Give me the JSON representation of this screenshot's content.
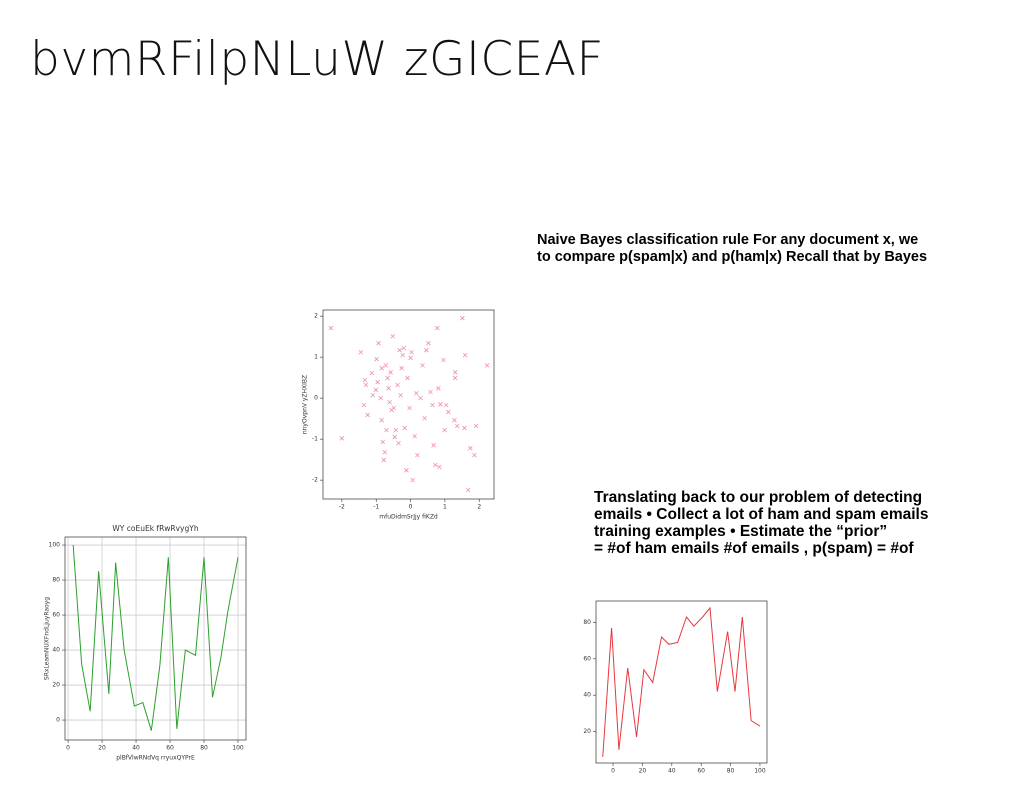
{
  "title": "bvmRFilpNLuW zGICEAF",
  "text_blocks": [
    {
      "lines": [
        "Naive Bayes classification rule For any document x, we",
        "to compare p(spam|x) and p(ham|x) Recall that by Bayes"
      ]
    },
    {
      "lines": [
        "Translating back to our problem of detecting",
        "emails • Collect a lot of ham and spam emails",
        "training examples • Estimate the “prior”",
        "= #of ham emails #of emails , p(spam) = #of"
      ]
    }
  ],
  "chart_data": [
    {
      "type": "scatter",
      "x_label": "mfuDidmSrJjy fiKZd",
      "y_label": "nnyOvpnV yZHXIBZ",
      "color": "#f08cb4",
      "marker": "x",
      "x": [
        -2.32,
        -2.0,
        -1.45,
        -1.33,
        -1.3,
        -1.36,
        -1.25,
        -1.13,
        -1.1,
        -1.01,
        -0.99,
        -0.93,
        -0.96,
        -0.87,
        -0.84,
        -0.84,
        -0.81,
        -0.78,
        -0.75,
        -0.72,
        -0.7,
        -0.67,
        -0.64,
        -0.61,
        -0.58,
        -0.55,
        -0.52,
        -0.49,
        -0.46,
        -0.43,
        -0.38,
        -0.35,
        -0.32,
        -0.29,
        -0.26,
        -0.23,
        -0.2,
        -0.17,
        -0.12,
        -0.09,
        -0.03,
        0,
        0.03,
        0.06,
        0.12,
        0.17,
        0.2,
        0.29,
        0.35,
        0.41,
        0.46,
        0.52,
        0.58,
        0.64,
        0.67,
        0.72,
        0.78,
        0.81,
        0.84,
        0.87,
        0.96,
        0.99,
        1.04,
        1.1,
        1.28,
        1.3,
        1.36,
        1.51,
        1.57,
        1.59,
        1.68,
        1.74,
        1.91,
        1.86,
        2.23,
        1.3
      ],
      "values": [
        1.71,
        -0.98,
        1.12,
        0.44,
        0.32,
        -0.17,
        -0.41,
        0.61,
        0.07,
        0.2,
        0.95,
        1.34,
        0.39,
        0,
        0.73,
        -0.54,
        -1.07,
        -1.51,
        -1.32,
        0.8,
        -0.78,
        0.49,
        0.24,
        -0.1,
        0.63,
        -0.29,
        1.51,
        -0.24,
        -0.95,
        -0.78,
        0.32,
        -1.1,
        1.17,
        0.07,
        0.73,
        1.05,
        1.22,
        -0.73,
        -1.76,
        0.49,
        -0.24,
        0.98,
        1.12,
        -2.0,
        -0.93,
        0.12,
        -1.39,
        0,
        0.8,
        -0.49,
        1.17,
        1.34,
        0.15,
        -0.17,
        -1.15,
        -1.63,
        1.71,
        0.24,
        -1.68,
        -0.15,
        0.93,
        -0.78,
        -0.17,
        -0.34,
        -0.54,
        0.63,
        -0.68,
        1.95,
        -0.73,
        1.05,
        -2.24,
        -1.22,
        -0.68,
        -1.39,
        0.8,
        0.49
      ],
      "xlim": [
        -2.55,
        2.43
      ],
      "ylim": [
        -2.46,
        2.15
      ],
      "xticks": [
        -2,
        -1,
        0,
        1,
        2
      ],
      "yticks": [
        -2,
        -1,
        0,
        1,
        2
      ],
      "grid": false
    },
    {
      "type": "line",
      "title": "WY coEuEk fRwRvygYh",
      "x_label": "plBfVlwRNdVq rryuxQYPrE",
      "y_label": "SRxLeamNUXFndLjuyRaoyg",
      "color": "#2ca02c",
      "x": [
        3,
        8,
        13,
        18,
        24,
        28,
        33,
        39,
        44,
        49,
        54,
        59,
        64,
        69,
        75,
        80,
        85,
        90,
        94,
        100
      ],
      "values": [
        100,
        32,
        5,
        85,
        15,
        90,
        40,
        8,
        10,
        -6,
        31,
        93,
        -5,
        40,
        37,
        93,
        13,
        36,
        62,
        93
      ],
      "xlim": [
        -1.8,
        104.7
      ],
      "ylim": [
        -11.4,
        104.6
      ],
      "xticks": [
        0,
        20,
        40,
        60,
        80,
        100
      ],
      "yticks": [
        0,
        20,
        40,
        60,
        80,
        100
      ],
      "grid": true
    },
    {
      "type": "line",
      "color": "#e8383d",
      "x": [
        -7,
        -1,
        4,
        10,
        16,
        21,
        27,
        33,
        38,
        44,
        50,
        55,
        61,
        66,
        71,
        78,
        83,
        88,
        94,
        100
      ],
      "values": [
        6,
        77,
        10,
        55,
        17,
        54,
        47,
        72,
        68,
        69,
        83,
        78,
        83,
        88,
        42,
        75,
        42,
        83,
        26,
        23
      ],
      "xlim": [
        -11.6,
        104.8
      ],
      "ylim": [
        2.7,
        91.8
      ],
      "xticks": [
        0,
        20,
        40,
        60,
        80,
        100
      ],
      "yticks": [
        20,
        40,
        60,
        80
      ],
      "grid": false
    }
  ]
}
